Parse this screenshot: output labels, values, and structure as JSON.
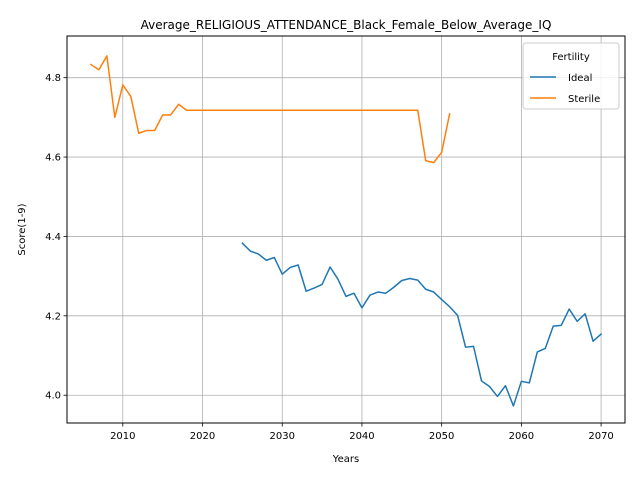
{
  "chart_data": {
    "type": "line",
    "title": "Average_RELIGIOUS_ATTENDANCE_Black_Female_Below_Average_IQ",
    "xlabel": "Years",
    "ylabel": "Score(1-9)",
    "xlim": [
      2003,
      2073
    ],
    "ylim": [
      3.93,
      4.905
    ],
    "xticks": [
      2010,
      2020,
      2030,
      2040,
      2050,
      2060,
      2070
    ],
    "yticks": [
      4.0,
      4.2,
      4.4,
      4.6,
      4.8
    ],
    "ytick_labels": [
      "4.0",
      "4.2",
      "4.4",
      "4.6",
      "4.8"
    ],
    "grid": true,
    "legend": {
      "title": "Fertility",
      "position": "top-right"
    },
    "series": [
      {
        "name": "Ideal",
        "color": "#1f77b4",
        "x": [
          2025,
          2026,
          2027,
          2028,
          2029,
          2030,
          2031,
          2032,
          2033,
          2034,
          2035,
          2036,
          2037,
          2038,
          2039,
          2040,
          2041,
          2042,
          2043,
          2044,
          2045,
          2046,
          2047,
          2048,
          2049,
          2050,
          2051,
          2052,
          2053,
          2054,
          2055,
          2056,
          2057,
          2058,
          2059,
          2060,
          2061,
          2062,
          2063,
          2064,
          2065,
          2066,
          2067,
          2068,
          2069,
          2070
        ],
        "y": [
          4.383,
          4.363,
          4.356,
          4.34,
          4.347,
          4.305,
          4.322,
          4.328,
          4.262,
          4.27,
          4.279,
          4.323,
          4.292,
          4.249,
          4.257,
          4.22,
          4.252,
          4.26,
          4.257,
          4.272,
          4.289,
          4.294,
          4.29,
          4.267,
          4.26,
          4.241,
          4.223,
          4.201,
          4.121,
          4.123,
          4.036,
          4.022,
          3.997,
          4.024,
          3.973,
          4.035,
          4.031,
          4.109,
          4.118,
          4.174,
          4.176,
          4.217,
          4.186,
          4.205,
          4.136,
          4.154
        ]
      },
      {
        "name": "Sterile",
        "color": "#ff7f0e",
        "x": [
          2006,
          2007,
          2008,
          2009,
          2010,
          2011,
          2012,
          2013,
          2014,
          2015,
          2016,
          2017,
          2018,
          2019,
          2020,
          2021,
          2022,
          2023,
          2024,
          2025,
          2026,
          2027,
          2028,
          2029,
          2030,
          2031,
          2032,
          2033,
          2034,
          2035,
          2036,
          2037,
          2038,
          2039,
          2040,
          2041,
          2042,
          2043,
          2044,
          2045,
          2046,
          2047,
          2048,
          2049,
          2050,
          2051
        ],
        "y": [
          4.833,
          4.82,
          4.855,
          4.7,
          4.782,
          4.753,
          4.66,
          4.667,
          4.667,
          4.706,
          4.706,
          4.733,
          4.718,
          4.718,
          4.718,
          4.718,
          4.718,
          4.718,
          4.718,
          4.718,
          4.718,
          4.718,
          4.718,
          4.718,
          4.718,
          4.718,
          4.718,
          4.718,
          4.718,
          4.718,
          4.718,
          4.718,
          4.718,
          4.718,
          4.718,
          4.718,
          4.718,
          4.718,
          4.718,
          4.718,
          4.718,
          4.718,
          4.591,
          4.586,
          4.612,
          4.709
        ]
      }
    ]
  }
}
